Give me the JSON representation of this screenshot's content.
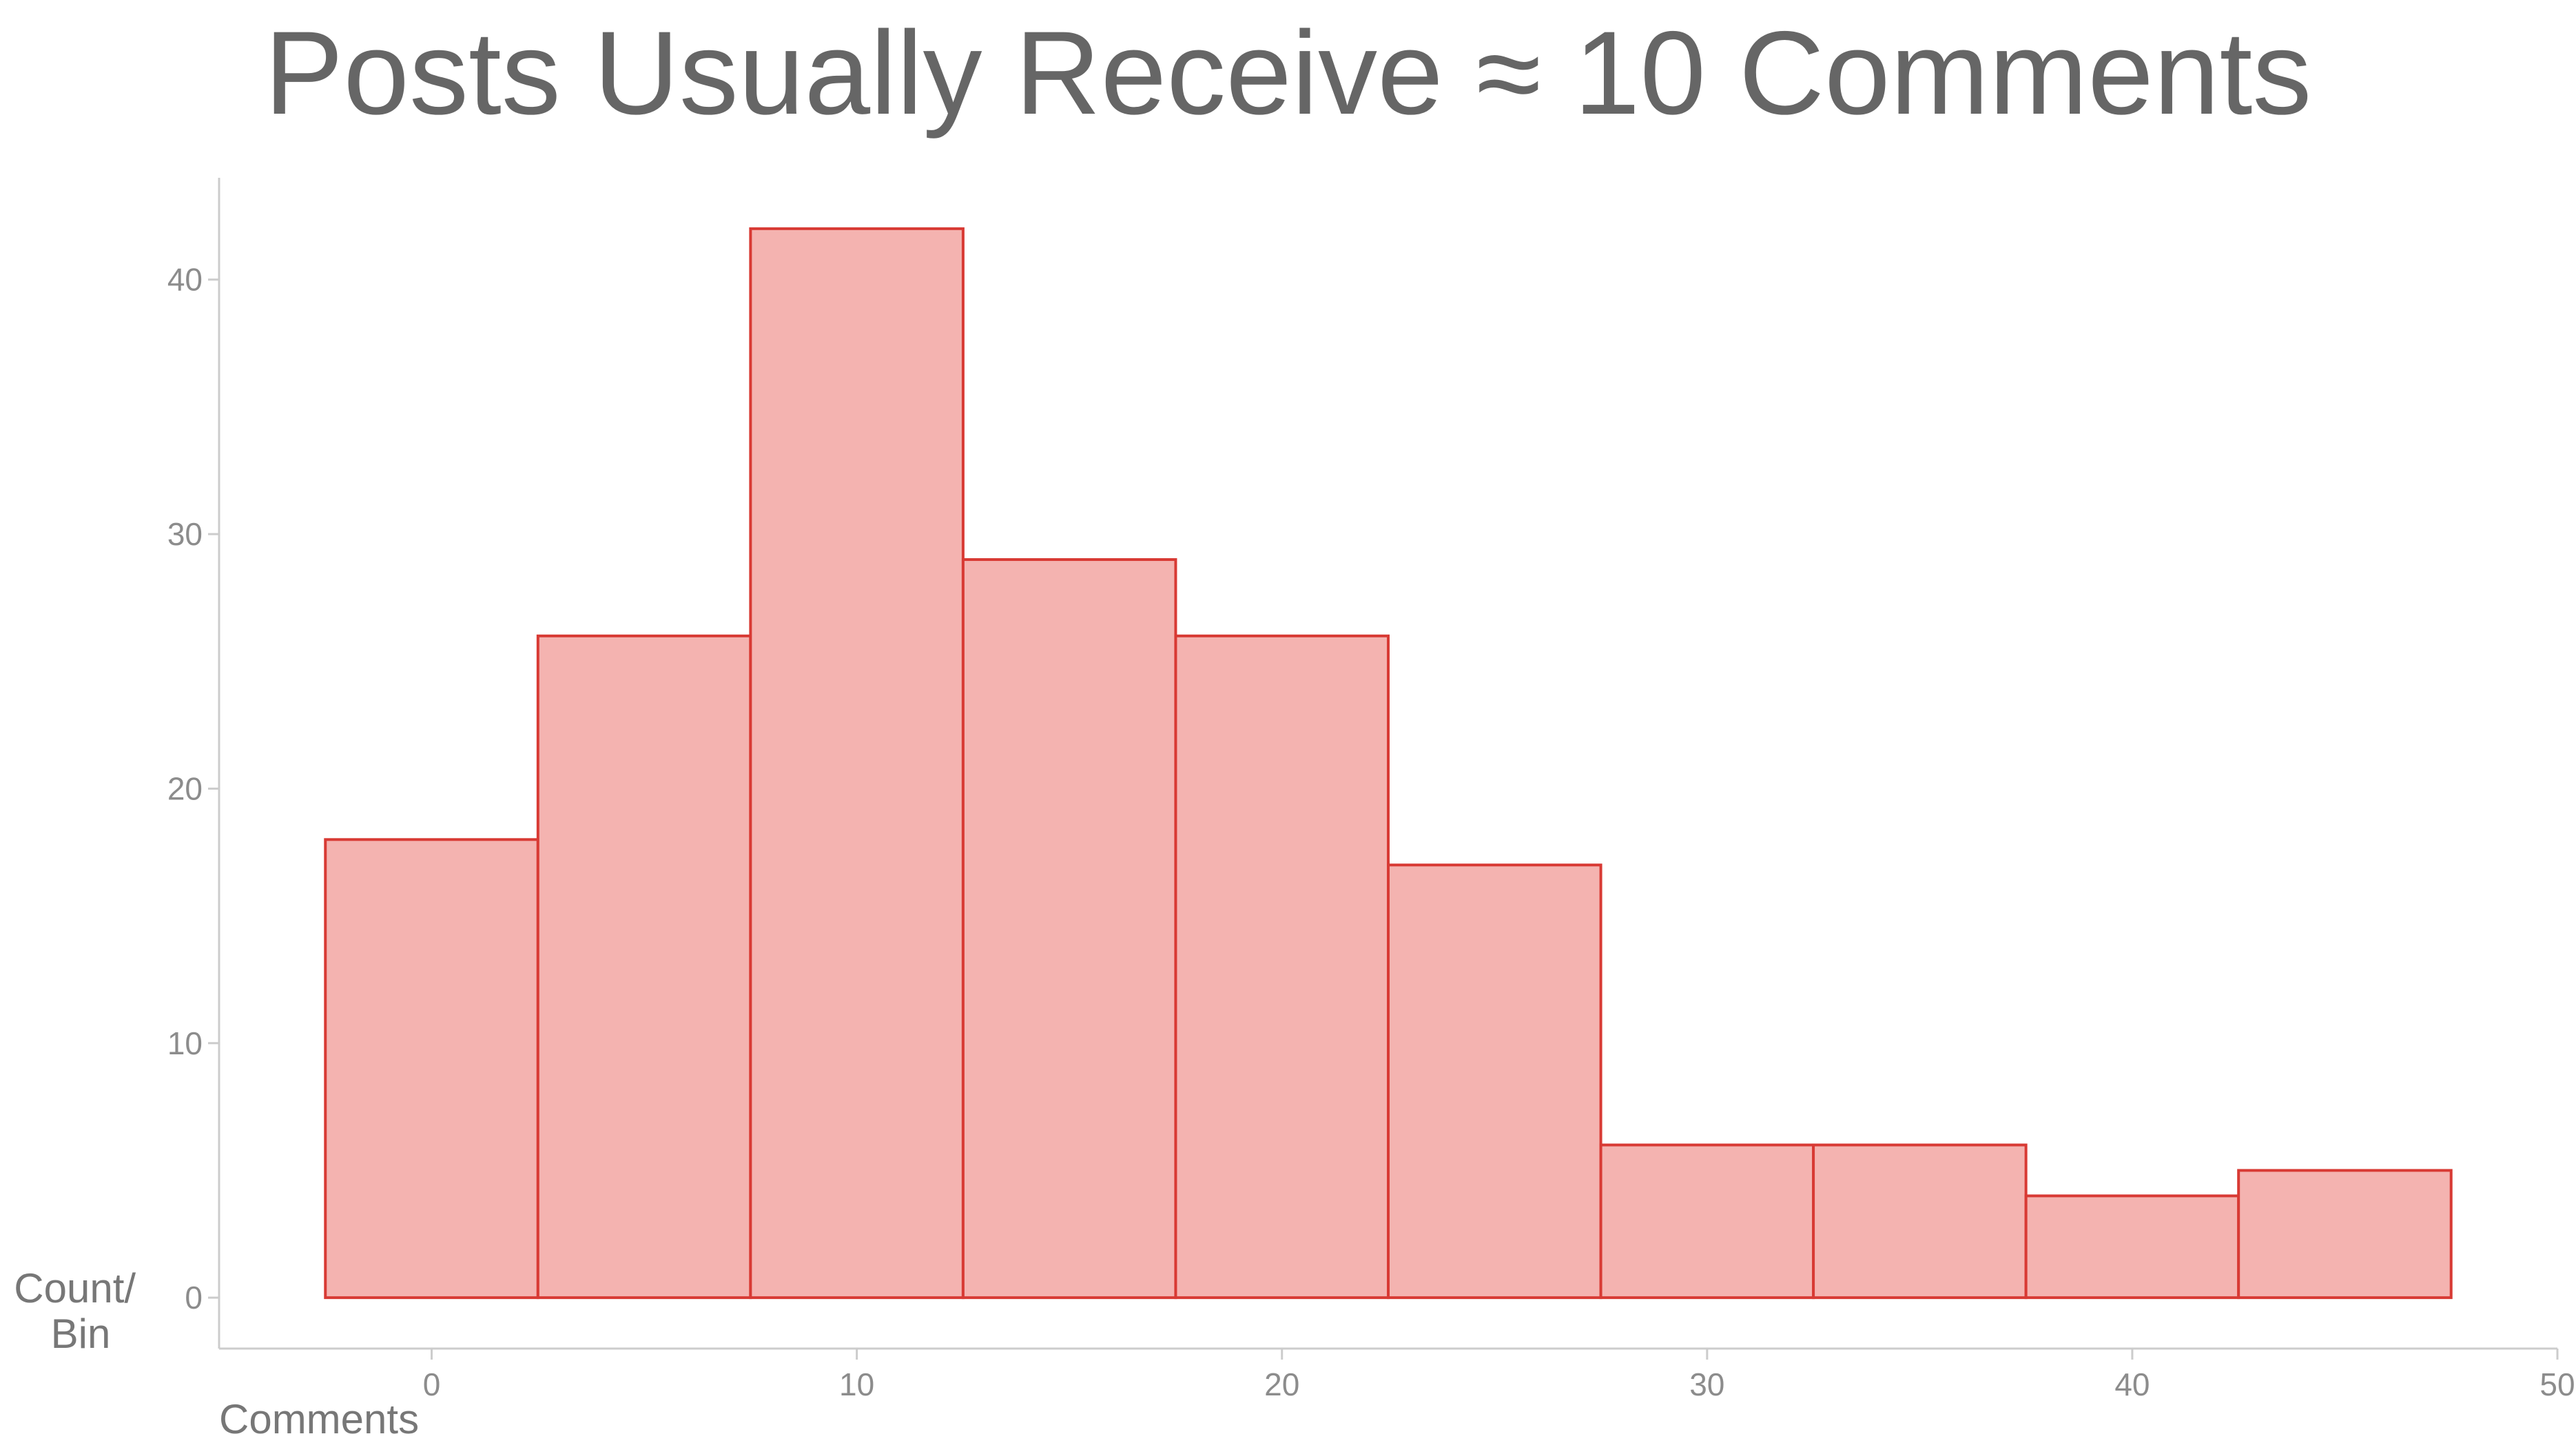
{
  "chart_data": {
    "type": "bar",
    "title": "Posts Usually Receive ≈ 10 Comments",
    "xlabel": "Comments",
    "ylabel_lines": [
      "Count/",
      "Bin"
    ],
    "bin_width": 5,
    "bins": [
      {
        "center": 0,
        "count": 18
      },
      {
        "center": 5,
        "count": 26
      },
      {
        "center": 10,
        "count": 42
      },
      {
        "center": 15,
        "count": 29
      },
      {
        "center": 20,
        "count": 26
      },
      {
        "center": 25,
        "count": 17
      },
      {
        "center": 30,
        "count": 6
      },
      {
        "center": 35,
        "count": 6
      },
      {
        "center": 40,
        "count": 4
      },
      {
        "center": 45,
        "count": 5
      }
    ],
    "xlim": [
      -5,
      50
    ],
    "ylim": [
      -2,
      44
    ],
    "xticks": [
      0,
      10,
      20,
      30,
      40,
      50
    ],
    "yticks": [
      0,
      10,
      20,
      30,
      40
    ],
    "grid": false,
    "colors": {
      "fill": "#f4b3b0",
      "stroke": "#d83a34",
      "axis": "#cccccc"
    }
  }
}
